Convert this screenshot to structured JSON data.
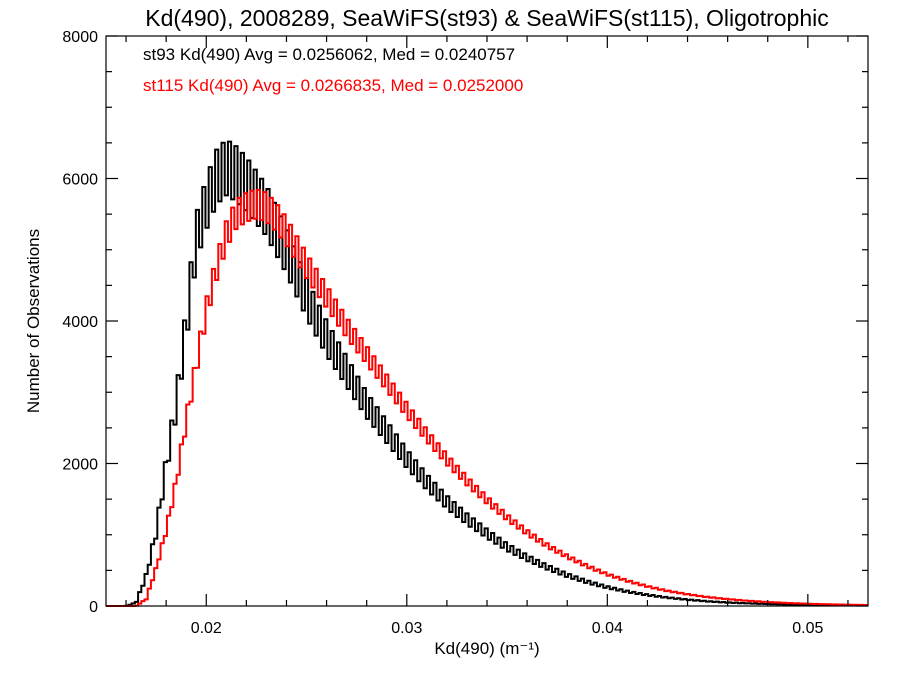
{
  "chart_data": {
    "type": "histogram",
    "title": "Kd(490), 2008289, SeaWiFS(st93) & SeaWiFS(st115), Oligotrophic",
    "xlabel": "Kd(490) (m⁻¹)",
    "ylabel": "Number of Observations",
    "xlim": [
      0.015,
      0.053
    ],
    "ylim": [
      0,
      8000
    ],
    "xticks": [
      0.02,
      0.03,
      0.04,
      0.05
    ],
    "xtick_labels": [
      "0.02",
      "0.03",
      "0.04",
      "0.05"
    ],
    "yticks": [
      0,
      2000,
      4000,
      6000,
      8000
    ],
    "ytick_labels": [
      "0",
      "2000",
      "4000",
      "6000",
      "8000"
    ],
    "grid": false,
    "annotations": [
      {
        "text": "st93 Kd(490) Avg = 0.0256062, Med = 0.0240757",
        "color": "#000000"
      },
      {
        "text": "st115 Kd(490) Avg = 0.0266835, Med = 0.0252000",
        "color": "#ff0000"
      }
    ],
    "series": [
      {
        "color": "#000000",
        "x": [
          0.016,
          0.0165,
          0.017,
          0.0175,
          0.018,
          0.0185,
          0.019,
          0.0195,
          0.02,
          0.0205,
          0.021,
          0.0215,
          0.022,
          0.0225,
          0.023,
          0.0235,
          0.024,
          0.0245,
          0.025,
          0.026,
          0.027,
          0.028,
          0.029,
          0.03,
          0.031,
          0.032,
          0.033,
          0.034,
          0.035,
          0.036,
          0.037,
          0.038,
          0.039,
          0.04,
          0.041,
          0.042,
          0.043,
          0.044,
          0.045,
          0.046,
          0.047,
          0.048,
          0.049,
          0.05,
          0.051,
          0.052,
          0.053
        ],
        "y": [
          0,
          50,
          450,
          1100,
          2100,
          3000,
          4200,
          5500,
          6000,
          6400,
          6550,
          6450,
          6300,
          6100,
          5900,
          5600,
          5300,
          4950,
          4600,
          4000,
          3500,
          3000,
          2600,
          2200,
          1850,
          1550,
          1300,
          1080,
          880,
          720,
          580,
          460,
          360,
          280,
          215,
          165,
          125,
          95,
          70,
          52,
          40,
          30,
          22,
          16,
          12,
          9,
          7
        ]
      },
      {
        "color": "#ff0000",
        "x": [
          0.016,
          0.0165,
          0.017,
          0.0175,
          0.018,
          0.0185,
          0.019,
          0.0195,
          0.02,
          0.0205,
          0.021,
          0.0215,
          0.022,
          0.0225,
          0.023,
          0.0235,
          0.024,
          0.0245,
          0.025,
          0.026,
          0.027,
          0.028,
          0.029,
          0.03,
          0.031,
          0.032,
          0.033,
          0.034,
          0.035,
          0.036,
          0.037,
          0.038,
          0.039,
          0.04,
          0.041,
          0.042,
          0.043,
          0.044,
          0.045,
          0.046,
          0.047,
          0.048,
          0.049,
          0.05,
          0.051,
          0.052,
          0.053
        ],
        "y": [
          0,
          0,
          100,
          550,
          1100,
          1800,
          2700,
          3500,
          4300,
          4900,
          5400,
          5700,
          5800,
          5850,
          5800,
          5650,
          5450,
          5200,
          4950,
          4500,
          4050,
          3650,
          3250,
          2850,
          2480,
          2130,
          1820,
          1540,
          1290,
          1070,
          880,
          720,
          580,
          460,
          365,
          285,
          220,
          170,
          130,
          100,
          76,
          58,
          44,
          33,
          25,
          19,
          14
        ]
      }
    ]
  }
}
